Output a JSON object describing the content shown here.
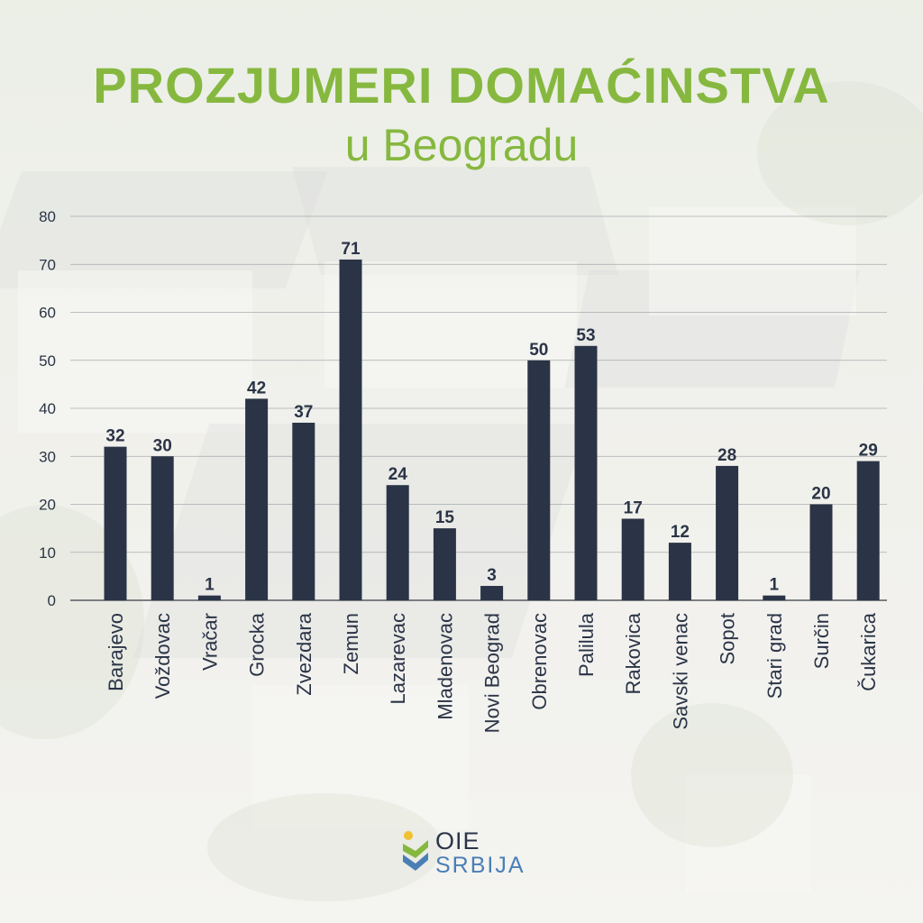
{
  "header": {
    "title": "PROZJUMERI DOMAĆINSTVA",
    "subtitle": "u Beogradu"
  },
  "logo": {
    "line1": "OIE",
    "line2": "SRBIJA"
  },
  "colors": {
    "accent_green": "#86b83f",
    "bar": "#2a3446",
    "grid": "#8a8f96",
    "text": "#2a3446"
  },
  "chart_data": {
    "type": "bar",
    "title": "PROZJUMERI DOMAĆINSTVA u Beogradu",
    "xlabel": "",
    "ylabel": "",
    "ylim": [
      0,
      80
    ],
    "yticks": [
      0,
      10,
      20,
      30,
      40,
      50,
      60,
      70,
      80
    ],
    "grid": true,
    "categories": [
      "Barajevo",
      "Voždovac",
      "Vračar",
      "Grocka",
      "Zvezdara",
      "Zemun",
      "Lazarevac",
      "Mladenovac",
      "Novi Beograd",
      "Obrenovac",
      "Palilula",
      "Rakovica",
      "Savski venac",
      "Sopot",
      "Stari grad",
      "Surčin",
      "Čukarica"
    ],
    "values": [
      32,
      30,
      1,
      42,
      37,
      71,
      24,
      15,
      3,
      50,
      53,
      17,
      12,
      28,
      1,
      20,
      29
    ]
  }
}
